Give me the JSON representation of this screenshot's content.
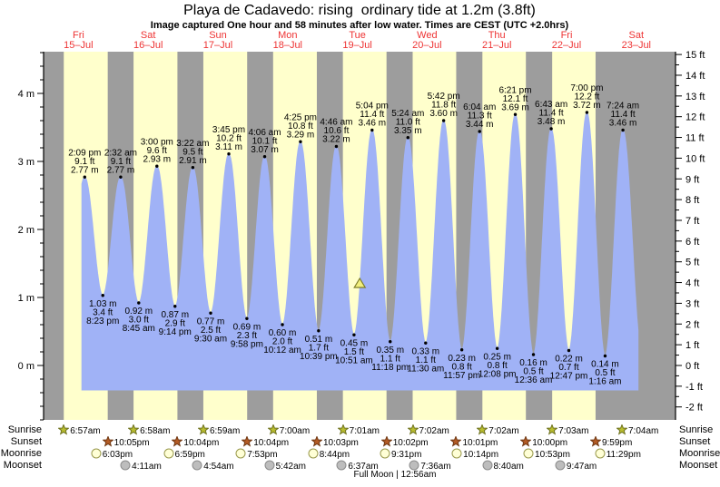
{
  "page": {
    "title": "Playa de Cadavedo: rising  ordinary tide at 1.2m (3.8ft)",
    "subtitle": "Image captured One hour and 58 minutes after low water. Times are CEST (UTC +2.0hrs)"
  },
  "days": [
    {
      "weekday": "Fri",
      "date": "15–Jul"
    },
    {
      "weekday": "Sat",
      "date": "16–Jul"
    },
    {
      "weekday": "Sun",
      "date": "17–Jul"
    },
    {
      "weekday": "Mon",
      "date": "18–Jul"
    },
    {
      "weekday": "Tue",
      "date": "19–Jul"
    },
    {
      "weekday": "Wed",
      "date": "20–Jul"
    },
    {
      "weekday": "Thu",
      "date": "21–Jul"
    },
    {
      "weekday": "Fri",
      "date": "22–Jul"
    },
    {
      "weekday": "Sat",
      "date": "23–Jul"
    }
  ],
  "chart_data": {
    "type": "area",
    "title": "Playa de Cadavedo: rising  ordinary tide at 1.2m (3.8ft)",
    "y_left_axis": {
      "unit": "m",
      "min": -0.8,
      "max": 4.61,
      "labeled_majors": [
        0,
        1,
        2,
        3,
        4
      ],
      "minor_step": 0.2,
      "suffix": " m"
    },
    "y_right_axis": {
      "unit": "ft",
      "min": -2,
      "max": 15,
      "minor_step": 0.5,
      "suffix": " ft"
    },
    "high_tides": [
      {
        "day": 0,
        "time": "2:09 pm",
        "ft": 9.1,
        "m": 2.77
      },
      {
        "day": 1,
        "time": "2:32 am",
        "ft": 9.1,
        "m": 2.77
      },
      {
        "day": 1,
        "time": "3:00 pm",
        "ft": 9.6,
        "m": 2.93
      },
      {
        "day": 2,
        "time": "3:22 am",
        "ft": 9.5,
        "m": 2.91
      },
      {
        "day": 2,
        "time": "3:45 pm",
        "ft": 10.2,
        "m": 3.11
      },
      {
        "day": 3,
        "time": "4:06 am",
        "ft": 10.1,
        "m": 3.07
      },
      {
        "day": 3,
        "time": "4:25 pm",
        "ft": 10.8,
        "m": 3.29
      },
      {
        "day": 4,
        "time": "4:46 am",
        "ft": 10.6,
        "m": 3.22
      },
      {
        "day": 4,
        "time": "5:04 pm",
        "ft": 11.4,
        "m": 3.46
      },
      {
        "day": 5,
        "time": "5:24 am",
        "ft": 11.0,
        "m": 3.35
      },
      {
        "day": 5,
        "time": "5:42 pm",
        "ft": 11.8,
        "m": 3.6
      },
      {
        "day": 6,
        "time": "6:04 am",
        "ft": 11.3,
        "m": 3.44
      },
      {
        "day": 6,
        "time": "6:21 pm",
        "ft": 12.1,
        "m": 3.69
      },
      {
        "day": 7,
        "time": "6:43 am",
        "ft": 11.4,
        "m": 3.48
      },
      {
        "day": 7,
        "time": "7:00 pm",
        "ft": 12.2,
        "m": 3.72
      },
      {
        "day": 8,
        "time": "7:24 am",
        "ft": 11.4,
        "m": 3.46
      }
    ],
    "low_tides": [
      {
        "day": 0,
        "time": "8:23 pm",
        "ft": 3.4,
        "m": 1.03
      },
      {
        "day": 1,
        "time": "8:45 am",
        "ft": 3.0,
        "m": 0.92
      },
      {
        "day": 1,
        "time": "9:14 pm",
        "ft": 2.9,
        "m": 0.87
      },
      {
        "day": 2,
        "time": "9:30 am",
        "ft": 2.5,
        "m": 0.77
      },
      {
        "day": 2,
        "time": "9:58 pm",
        "ft": 2.3,
        "m": 0.69
      },
      {
        "day": 3,
        "time": "10:12 am",
        "ft": 2.0,
        "m": 0.6
      },
      {
        "day": 3,
        "time": "10:39 pm",
        "ft": 1.7,
        "m": 0.51
      },
      {
        "day": 4,
        "time": "10:51 am",
        "ft": 1.5,
        "m": 0.45
      },
      {
        "day": 4,
        "time": "11:18 pm",
        "ft": 1.1,
        "m": 0.35
      },
      {
        "day": 5,
        "time": "11:30 am",
        "ft": 1.1,
        "m": 0.33
      },
      {
        "day": 5,
        "time": "11:57 pm",
        "ft": 0.8,
        "m": 0.23
      },
      {
        "day": 6,
        "time": "12:08 pm",
        "ft": 0.8,
        "m": 0.25
      },
      {
        "day": 7,
        "time": "12:36 am",
        "ft": 0.5,
        "m": 0.16
      },
      {
        "day": 7,
        "time": "12:47 pm",
        "ft": 0.7,
        "m": 0.22
      },
      {
        "day": 8,
        "time": "1:16 am",
        "ft": 0.5,
        "m": 0.14
      }
    ],
    "current_marker": {
      "t_hours": 108.82,
      "height_m": 1.2
    },
    "curve_render": {
      "pre_low_t": 8.0,
      "pre_low_m": 1.05,
      "post_low_t": 205.9,
      "post_low_m": 0.2,
      "start_t": 13.2,
      "end_t": 204.6,
      "fill_bottom_m": -0.36
    }
  },
  "almanac": {
    "rows": [
      {
        "key": "sunrise",
        "label": "Sunrise",
        "shape": "star",
        "fill": "#b9bd2f",
        "stroke": "#6f7320",
        "events": [
          {
            "day": 0,
            "time": "6:57am"
          },
          {
            "day": 1,
            "time": "6:58am"
          },
          {
            "day": 2,
            "time": "6:59am"
          },
          {
            "day": 3,
            "time": "7:00am"
          },
          {
            "day": 4,
            "time": "7:01am"
          },
          {
            "day": 5,
            "time": "7:02am"
          },
          {
            "day": 6,
            "time": "7:02am"
          },
          {
            "day": 7,
            "time": "7:03am"
          },
          {
            "day": 8,
            "time": "7:04am"
          }
        ]
      },
      {
        "key": "sunset",
        "label": "Sunset",
        "shape": "star",
        "fill": "#b35b25",
        "stroke": "#703812",
        "events": [
          {
            "day": 0,
            "time": "10:05pm"
          },
          {
            "day": 1,
            "time": "10:04pm"
          },
          {
            "day": 2,
            "time": "10:04pm"
          },
          {
            "day": 3,
            "time": "10:03pm"
          },
          {
            "day": 4,
            "time": "10:02pm"
          },
          {
            "day": 5,
            "time": "10:01pm"
          },
          {
            "day": 6,
            "time": "10:00pm"
          },
          {
            "day": 7,
            "time": "9:59pm"
          }
        ]
      },
      {
        "key": "moonrise",
        "label": "Moonrise",
        "shape": "circle",
        "fill": "#ffffd6",
        "stroke": "#99994d",
        "events": [
          {
            "day": 0,
            "time": "6:03pm"
          },
          {
            "day": 1,
            "time": "6:59pm"
          },
          {
            "day": 2,
            "time": "7:53pm"
          },
          {
            "day": 3,
            "time": "8:44pm"
          },
          {
            "day": 4,
            "time": "9:31pm"
          },
          {
            "day": 5,
            "time": "10:14pm"
          },
          {
            "day": 6,
            "time": "10:53pm"
          },
          {
            "day": 7,
            "time": "11:29pm"
          }
        ]
      },
      {
        "key": "moonset",
        "label": "Moonset",
        "shape": "circle",
        "fill": "#bdbdbd",
        "stroke": "#8b8b8b",
        "events": [
          {
            "day": 1,
            "time": "4:11am"
          },
          {
            "day": 2,
            "time": "4:54am"
          },
          {
            "day": 3,
            "time": "5:42am"
          },
          {
            "day": 4,
            "time": "6:37am"
          },
          {
            "day": 5,
            "time": "7:36am"
          },
          {
            "day": 6,
            "time": "8:40am"
          },
          {
            "day": 7,
            "time": "9:47am"
          }
        ]
      }
    ],
    "note": "Full Moon | 12:56am",
    "note_day": 5,
    "note_time": "12:56am"
  },
  "colors": {
    "night_band": "#9d9d9d",
    "day_band": "#ffffcc",
    "tide_fill": "#a0b2f6",
    "date_red": "#ee3333",
    "marker_fill": "#f2ef7d",
    "marker_stroke": "#7d7d28",
    "text": "#000000"
  }
}
